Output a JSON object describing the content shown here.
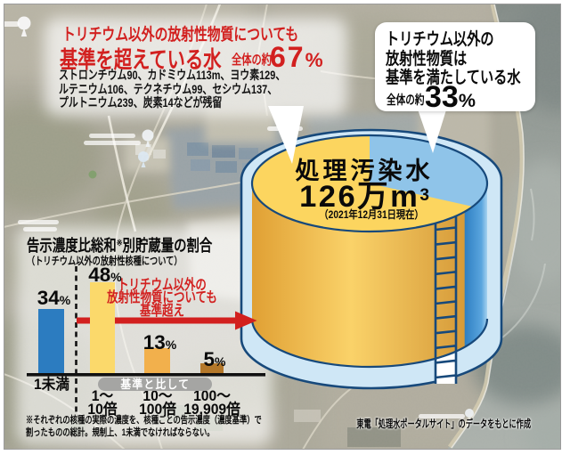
{
  "colors": {
    "headline_red": "#d2201f",
    "arrow_red": "#d2201f",
    "tank_top_yellow": "#fcd55f",
    "tank_side_yellow": "#eab23e",
    "tank_top_blue": "#8fc4e9",
    "tank_side_blue": "#3c8cc9",
    "tank_rim_pale_blue": "#cfe7f6",
    "tank_outline_navy": "#17497b",
    "bar_blue": "#2c7cc0",
    "bar_pale_yellow": "#fbd96b",
    "bar_orange": "#f2b04c",
    "bar_brown": "#b4782a",
    "pill_gray": "#a5a5a3"
  },
  "top_left_callout": {
    "line1": "トリチウム以外の放射性物質についても",
    "line2_main": "基準を超えている水",
    "line2_prefix": "全体の約",
    "line2_value": "67",
    "line2_unit": "%",
    "details": [
      "ストロンチウム90、カドミウム113m、ヨウ素129、",
      "ルテニウム106、テクネチウム99、セシウム137、",
      "プルトニウム239、炭素14などが残留"
    ]
  },
  "top_right_callout": {
    "line1": "トリチウム以外の",
    "line2": "放射性物質は",
    "line3": "基準を満たしている水",
    "prefix": "全体の約",
    "value": "33",
    "unit": "%"
  },
  "tank": {
    "title": "処理汚染水",
    "volume": "126万m",
    "volume_sup": "3",
    "date_note": "（2021年12月31日現在）"
  },
  "bar_chart": {
    "title_main": "告示濃度比総和",
    "title_ref_mark": "※",
    "title_rest": "別貯蔵量の割合",
    "subtitle": "（トリチウム以外の放射性核種について）",
    "bars": [
      {
        "value_label": "34",
        "unit": "%",
        "category_lines": [
          "1未満"
        ],
        "color": "#2c7cc0"
      },
      {
        "value_label": "48",
        "unit": "%",
        "category_lines": [
          "1～",
          "10倍"
        ],
        "color": "#fbd96b"
      },
      {
        "value_label": "13",
        "unit": "%",
        "category_lines": [
          "10～",
          "100倍"
        ],
        "color": "#f2b04c"
      },
      {
        "value_label": "5",
        "unit": "%",
        "category_lines": [
          "100～",
          "19,909倍"
        ],
        "color": "#b4782a"
      }
    ],
    "baseline_note": "基準と比して",
    "annotation_line1": "トリチウム以外の",
    "annotation_line2": "放射性物質についても",
    "annotation_line3": "基準超え",
    "footnote_line1": "※それぞれの核種の実際の濃度を、核種ごとの告示濃度（濃度基準）で",
    "footnote_line2": "割ったものの総計。規制上、1未満でなければならない。"
  },
  "credit": "東電「処理水ポータルサイト」のデータをもとに作成",
  "chart_data": [
    {
      "type": "pie",
      "title": "処理汚染水 126万m³",
      "subtitle": "2021年12月31日現在",
      "labels": [
        "基準を超えている水（トリチウム以外の放射性物質についても基準超え）",
        "基準を満たしている水（トリチウム以外の放射性物質は基準内）"
      ],
      "values": [
        67,
        33
      ],
      "unit": "%",
      "colors": [
        "#fcd55f",
        "#8fc4e9"
      ],
      "legend_position": "none"
    },
    {
      "type": "bar",
      "title": "告示濃度比総和※別貯蔵量の割合",
      "subtitle": "（トリチウム以外の放射性核種について）",
      "categories": [
        "1未満",
        "1～10倍",
        "10～100倍",
        "100～19,909倍"
      ],
      "values": [
        34,
        48,
        13,
        5
      ],
      "unit": "%",
      "colors": [
        "#2c7cc0",
        "#fbd96b",
        "#f2b04c",
        "#b4782a"
      ],
      "group_note": "基準と比して（1～10倍・10～100倍・100～19,909倍）",
      "annotation": "トリチウム以外の放射性物質についても基準超え",
      "footnote": "※それぞれの核種の実際の濃度を、核種ごとの告示濃度（濃度基準）で割ったものの総計。規制上、1未満でなければならない。",
      "ylim": [
        0,
        50
      ],
      "grid": false,
      "xlabel": "",
      "ylabel": ""
    }
  ]
}
